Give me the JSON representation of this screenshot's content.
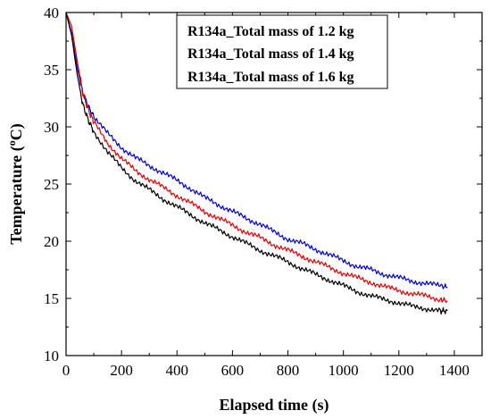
{
  "chart_data": {
    "type": "line",
    "title": "",
    "xlabel": "Elapsed time (s)",
    "ylabel": "Temperature (oC)",
    "ylabel_main": "Temperature (",
    "ylabel_sup": "o",
    "ylabel_unit": "C)",
    "xlim": [
      0,
      1500
    ],
    "ylim": [
      10,
      40
    ],
    "xticks": [
      0,
      200,
      400,
      600,
      800,
      1000,
      1200,
      1400
    ],
    "yticks": [
      10,
      15,
      20,
      25,
      30,
      35,
      40
    ],
    "grid": false,
    "legend_position": "top-right",
    "series": [
      {
        "name": "R134a_Total mass of 1.2 kg",
        "color": "#0000cc",
        "x": [
          0,
          20,
          40,
          60,
          80,
          100,
          150,
          200,
          250,
          300,
          350,
          400,
          450,
          500,
          550,
          600,
          650,
          700,
          750,
          800,
          850,
          900,
          950,
          1000,
          1050,
          1100,
          1150,
          1200,
          1250,
          1300,
          1350,
          1375
        ],
        "y": [
          40.0,
          38.2,
          35.2,
          33.0,
          31.8,
          30.9,
          29.4,
          28.2,
          27.3,
          26.6,
          26.0,
          25.3,
          24.6,
          23.8,
          23.2,
          22.6,
          22.0,
          21.5,
          20.8,
          20.2,
          19.8,
          19.3,
          18.8,
          18.3,
          17.8,
          17.5,
          17.1,
          16.8,
          16.5,
          16.3,
          16.1,
          16.0
        ]
      },
      {
        "name": "R134a_Total mass of 1.4 kg",
        "color": "#dd0000",
        "x": [
          0,
          20,
          40,
          60,
          80,
          100,
          150,
          200,
          250,
          300,
          350,
          400,
          450,
          500,
          550,
          600,
          650,
          700,
          750,
          800,
          850,
          900,
          950,
          1000,
          1050,
          1100,
          1150,
          1200,
          1250,
          1300,
          1350,
          1375
        ],
        "y": [
          40.0,
          38.8,
          35.8,
          33.0,
          31.5,
          30.4,
          28.6,
          27.2,
          26.2,
          25.4,
          24.7,
          24.0,
          23.3,
          22.6,
          22.0,
          21.4,
          20.8,
          20.3,
          19.7,
          19.2,
          18.7,
          18.2,
          17.7,
          17.2,
          16.8,
          16.4,
          16.0,
          15.7,
          15.4,
          15.2,
          14.9,
          14.8
        ]
      },
      {
        "name": "R134a_Total mass of 1.6 kg",
        "color": "#000000",
        "x": [
          0,
          20,
          40,
          60,
          80,
          100,
          150,
          200,
          250,
          300,
          350,
          400,
          450,
          500,
          550,
          600,
          650,
          700,
          750,
          800,
          850,
          900,
          950,
          1000,
          1050,
          1100,
          1150,
          1200,
          1250,
          1300,
          1350,
          1375
        ],
        "y": [
          40.0,
          38.0,
          34.6,
          32.0,
          30.6,
          29.6,
          27.8,
          26.4,
          25.3,
          24.5,
          23.7,
          23.0,
          22.3,
          21.6,
          21.0,
          20.4,
          19.8,
          19.2,
          18.7,
          18.2,
          17.6,
          17.1,
          16.6,
          16.1,
          15.6,
          15.2,
          14.9,
          14.6,
          14.3,
          14.1,
          13.9,
          13.9
        ]
      }
    ]
  }
}
